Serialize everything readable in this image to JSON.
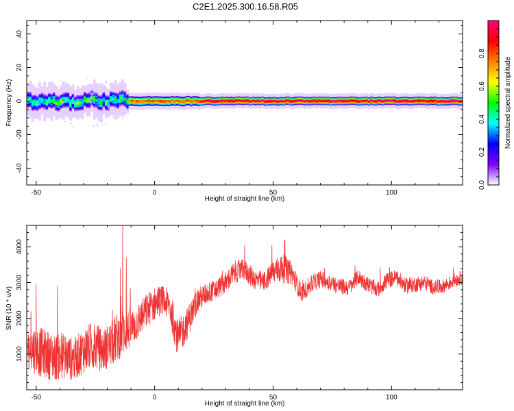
{
  "title": "C2E1.2025.300.16.58.R05",
  "chart_data": [
    {
      "type": "heatmap",
      "xlabel": "Height of straight line (km)",
      "ylabel": "Frequency (Hz)",
      "xlim": [
        -54,
        130
      ],
      "ylim": [
        -50,
        48
      ],
      "xticks": [
        -50,
        0,
        50,
        100
      ],
      "yticks": [
        -40,
        -20,
        0,
        20,
        40
      ],
      "band": {
        "center_hz": 0,
        "segments": [
          {
            "x": [
              -54,
              -12
            ],
            "halfwidth_hz": 5,
            "peak_amplitude": 0.45
          },
          {
            "x": [
              -12,
              18
            ],
            "halfwidth_hz": 3,
            "peak_amplitude": 0.8
          },
          {
            "x": [
              18,
              130
            ],
            "halfwidth_hz": 2.5,
            "peak_amplitude": 0.95
          }
        ]
      },
      "colorbar": {
        "label": "Normalized spectral amplitude",
        "ticks": [
          0.0,
          0.2,
          0.4,
          0.6,
          0.8
        ],
        "tick_labels": [
          "0.0",
          "0.2",
          "0.4",
          "0.6",
          "0.8"
        ],
        "range": [
          0,
          1
        ],
        "colors": [
          "#ffffff",
          "#8000ff",
          "#0000ff",
          "#00ffff",
          "#00ff00",
          "#ffff00",
          "#ff8000",
          "#ff0000",
          "#ff0080"
        ]
      }
    },
    {
      "type": "line",
      "xlabel": "Height of straight line (km)",
      "ylabel": "SNR (10 * v/v)",
      "xlim": [
        -54,
        130
      ],
      "ylim": [
        0,
        4600
      ],
      "xticks": [
        -50,
        0,
        50,
        100
      ],
      "yticks": [
        1000,
        2000,
        3000,
        4000
      ],
      "color": "#ee3333",
      "series": [
        {
          "x": [
            -54,
            -50,
            -46,
            -42,
            -38,
            -34,
            -30,
            -26,
            -22,
            -18,
            -14,
            -10,
            -6,
            -2,
            2,
            6,
            10,
            14,
            18,
            22,
            26,
            30,
            34,
            38,
            42,
            46,
            50,
            54,
            58,
            62,
            66,
            70,
            74,
            78,
            82,
            86,
            90,
            94,
            98,
            102,
            106,
            110,
            114,
            118,
            122,
            126,
            130
          ],
          "values": [
            1200,
            1100,
            1000,
            900,
            950,
            850,
            1100,
            1250,
            1100,
            1300,
            1600,
            1700,
            2000,
            2300,
            2500,
            2400,
            1400,
            1900,
            2500,
            2700,
            2800,
            3000,
            3300,
            3350,
            3100,
            3000,
            3300,
            3400,
            3250,
            2700,
            2950,
            3100,
            3000,
            2900,
            2850,
            3150,
            2950,
            2800,
            3050,
            3150,
            2900,
            2950,
            3000,
            2850,
            2900,
            3050,
            3150
          ],
          "amplitude": [
            600,
            700,
            700,
            650,
            650,
            600,
            650,
            700,
            600,
            650,
            700,
            550,
            500,
            500,
            450,
            450,
            550,
            450,
            350,
            300,
            300,
            300,
            320,
            300,
            300,
            280,
            350,
            420,
            320,
            250,
            250,
            250,
            230,
            230,
            230,
            230,
            230,
            230,
            230,
            230,
            220,
            220,
            220,
            200,
            200,
            200,
            200
          ],
          "spikes": [
            {
              "x": -13.5,
              "y": 4580
            },
            {
              "x": -12,
              "y": 3700
            },
            {
              "x": -14.5,
              "y": 3400
            },
            {
              "x": 38,
              "y": 4050
            },
            {
              "x": 55,
              "y": 4200
            },
            {
              "x": -50,
              "y": 2950
            },
            {
              "x": -41,
              "y": 2900
            }
          ]
        }
      ]
    }
  ]
}
